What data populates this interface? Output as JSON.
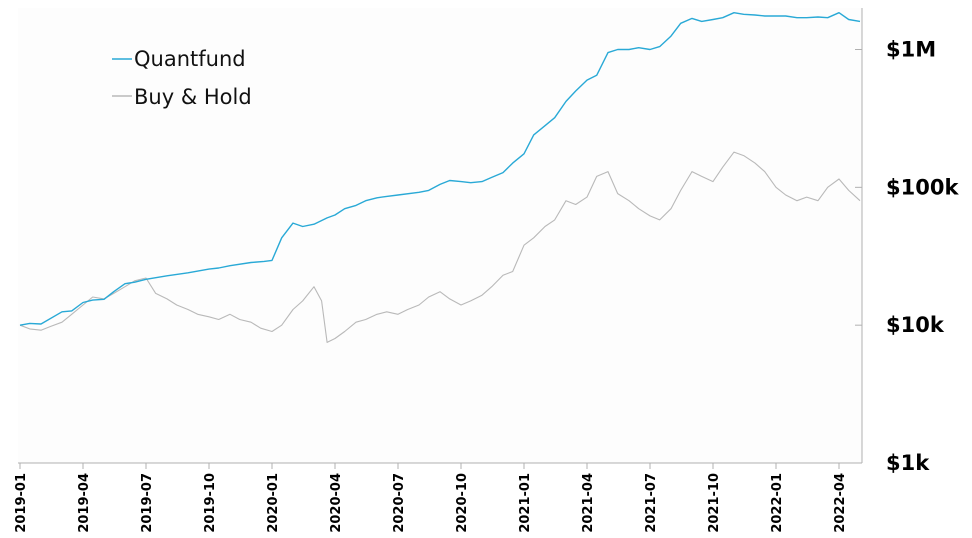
{
  "chart_data": {
    "type": "line",
    "title": "",
    "xlabel": "",
    "ylabel": "",
    "y_scale": "log",
    "ylim": [
      1000,
      2000000
    ],
    "xlim": [
      "2019-01",
      "2022-05"
    ],
    "legend_position": "top-left",
    "grid": false,
    "x_tick_labels": [
      "2019-01",
      "2019-04",
      "2019-07",
      "2019-10",
      "2020-01",
      "2020-04",
      "2020-07",
      "2020-10",
      "2021-01",
      "2021-04",
      "2021-07",
      "2021-10",
      "2022-01",
      "2022-04"
    ],
    "y_tick_labels": [
      {
        "value": 1000,
        "label": "$1k"
      },
      {
        "value": 10000,
        "label": "$10k"
      },
      {
        "value": 100000,
        "label": "$100k"
      },
      {
        "value": 1000000,
        "label": "$1M"
      }
    ],
    "series": [
      {
        "name": "Quantfund",
        "color": "#29a9d6",
        "x": [
          "2019-01-01",
          "2019-01-15",
          "2019-02-01",
          "2019-03-01",
          "2019-03-15",
          "2019-04-01",
          "2019-04-15",
          "2019-05-01",
          "2019-05-15",
          "2019-06-01",
          "2019-06-15",
          "2019-07-01",
          "2019-08-01",
          "2019-09-01",
          "2019-10-01",
          "2019-10-15",
          "2019-11-01",
          "2019-12-01",
          "2019-12-20",
          "2020-01-01",
          "2020-01-15",
          "2020-02-01",
          "2020-02-15",
          "2020-03-01",
          "2020-03-20",
          "2020-04-01",
          "2020-04-15",
          "2020-05-01",
          "2020-05-15",
          "2020-06-01",
          "2020-06-15",
          "2020-07-01",
          "2020-08-01",
          "2020-08-15",
          "2020-09-01",
          "2020-09-15",
          "2020-10-01",
          "2020-10-15",
          "2020-11-01",
          "2020-11-15",
          "2020-12-01",
          "2020-12-15",
          "2021-01-01",
          "2021-01-15",
          "2021-02-01",
          "2021-02-15",
          "2021-03-01",
          "2021-03-15",
          "2021-04-01",
          "2021-04-15",
          "2021-05-01",
          "2021-05-15",
          "2021-06-01",
          "2021-06-15",
          "2021-07-01",
          "2021-07-15",
          "2021-08-01",
          "2021-08-15",
          "2021-09-01",
          "2021-09-15",
          "2021-10-01",
          "2021-10-15",
          "2021-11-01",
          "2021-11-15",
          "2021-12-01",
          "2021-12-15",
          "2022-01-01",
          "2022-01-15",
          "2022-02-01",
          "2022-02-15",
          "2022-03-01",
          "2022-03-15",
          "2022-04-01",
          "2022-04-15",
          "2022-05-01"
        ],
        "values": [
          10000,
          10300,
          10200,
          12500,
          12700,
          14600,
          15200,
          15400,
          17500,
          20000,
          20500,
          21500,
          22800,
          24000,
          25500,
          26000,
          27000,
          28500,
          29000,
          29500,
          43000,
          55000,
          52000,
          54000,
          60000,
          63000,
          70000,
          74000,
          80000,
          84000,
          86000,
          88000,
          92000,
          95000,
          105000,
          112000,
          110000,
          108000,
          110000,
          118000,
          128000,
          150000,
          175000,
          240000,
          280000,
          320000,
          420000,
          500000,
          600000,
          650000,
          950000,
          1000000,
          1000000,
          1030000,
          1000000,
          1050000,
          1250000,
          1550000,
          1680000,
          1600000,
          1650000,
          1700000,
          1850000,
          1800000,
          1780000,
          1750000,
          1750000,
          1750000,
          1700000,
          1700000,
          1720000,
          1700000,
          1850000,
          1650000,
          1600000
        ]
      },
      {
        "name": "Buy & Hold",
        "color": "#b9b9b9",
        "x": [
          "2019-01-01",
          "2019-01-15",
          "2019-02-01",
          "2019-02-15",
          "2019-03-01",
          "2019-03-15",
          "2019-04-01",
          "2019-04-15",
          "2019-05-01",
          "2019-05-15",
          "2019-06-01",
          "2019-06-15",
          "2019-07-01",
          "2019-07-15",
          "2019-08-01",
          "2019-08-15",
          "2019-09-01",
          "2019-09-15",
          "2019-10-01",
          "2019-10-15",
          "2019-11-01",
          "2019-11-15",
          "2019-12-01",
          "2019-12-15",
          "2020-01-01",
          "2020-01-15",
          "2020-02-01",
          "2020-02-15",
          "2020-03-01",
          "2020-03-12",
          "2020-03-20",
          "2020-04-01",
          "2020-04-15",
          "2020-05-01",
          "2020-05-15",
          "2020-06-01",
          "2020-06-15",
          "2020-07-01",
          "2020-07-15",
          "2020-08-01",
          "2020-08-15",
          "2020-09-01",
          "2020-09-15",
          "2020-10-01",
          "2020-10-15",
          "2020-11-01",
          "2020-11-15",
          "2020-12-01",
          "2020-12-15",
          "2021-01-01",
          "2021-01-15",
          "2021-02-01",
          "2021-02-15",
          "2021-03-01",
          "2021-03-15",
          "2021-04-01",
          "2021-04-15",
          "2021-05-01",
          "2021-05-15",
          "2021-06-01",
          "2021-06-15",
          "2021-07-01",
          "2021-07-15",
          "2021-08-01",
          "2021-08-15",
          "2021-09-01",
          "2021-09-15",
          "2021-10-01",
          "2021-10-15",
          "2021-11-01",
          "2021-11-15",
          "2021-12-01",
          "2021-12-15",
          "2022-01-01",
          "2022-01-15",
          "2022-02-01",
          "2022-02-15",
          "2022-03-01",
          "2022-03-15",
          "2022-04-01",
          "2022-04-15",
          "2022-05-01"
        ],
        "values": [
          10000,
          9400,
          9200,
          9800,
          10500,
          12000,
          14000,
          16000,
          15500,
          17000,
          19000,
          21000,
          22000,
          17000,
          15500,
          14000,
          13000,
          12000,
          11500,
          11000,
          12000,
          11000,
          10500,
          9500,
          9000,
          10000,
          13000,
          15000,
          19000,
          15000,
          7500,
          8000,
          9000,
          10500,
          11000,
          12000,
          12500,
          12000,
          13000,
          14000,
          16000,
          17500,
          15500,
          14000,
          15000,
          16500,
          19000,
          23000,
          24500,
          38000,
          43000,
          52000,
          58000,
          80000,
          75000,
          85000,
          120000,
          130000,
          90000,
          80000,
          70000,
          62000,
          58000,
          70000,
          95000,
          130000,
          120000,
          110000,
          140000,
          180000,
          170000,
          150000,
          130000,
          100000,
          88000,
          80000,
          85000,
          80000,
          100000,
          115000,
          95000,
          80000
        ]
      }
    ]
  }
}
